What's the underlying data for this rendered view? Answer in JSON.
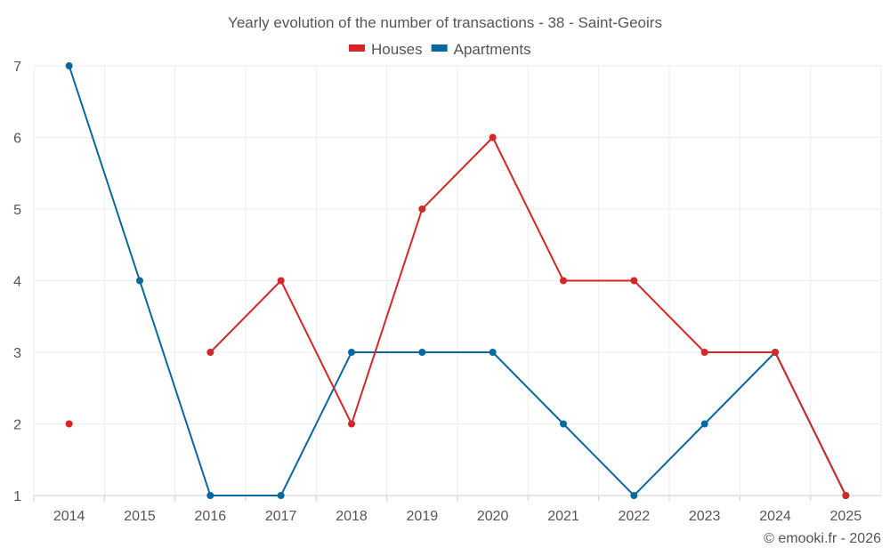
{
  "chart_data": {
    "type": "line",
    "title": "Yearly evolution of the number of transactions - 38 - Saint-Geoirs",
    "categories": [
      "2014",
      "2015",
      "2016",
      "2017",
      "2018",
      "2019",
      "2020",
      "2021",
      "2022",
      "2023",
      "2024",
      "2025"
    ],
    "series": [
      {
        "name": "Houses",
        "color": "#d62728",
        "values": [
          2,
          null,
          3,
          4,
          2,
          5,
          6,
          4,
          4,
          3,
          3,
          1
        ]
      },
      {
        "name": "Apartments",
        "color": "#0868a0",
        "values": [
          7,
          4,
          1,
          1,
          3,
          3,
          3,
          2,
          1,
          2,
          3,
          1
        ]
      }
    ],
    "yticks": [
      "1",
      "2",
      "3",
      "4",
      "5",
      "6",
      "7"
    ],
    "ylim": [
      1,
      7
    ],
    "xlabel": "",
    "ylabel": "",
    "grid": true,
    "legend": "top-center"
  },
  "credit": "© emooki.fr - 2026"
}
